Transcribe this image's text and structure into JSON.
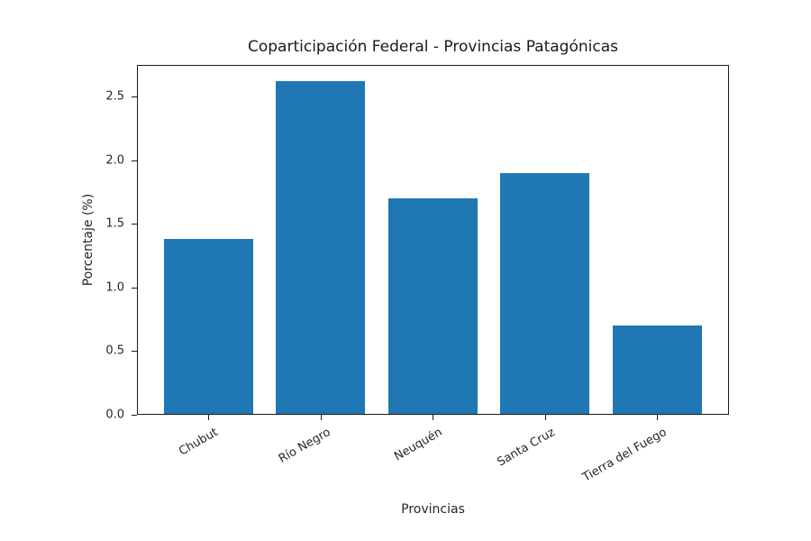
{
  "chart_data": {
    "type": "bar",
    "title": "Coparticipación Federal - Provincias Patagónicas",
    "xlabel": "Provincias",
    "ylabel": "Porcentaje (%)",
    "categories": [
      "Chubut",
      "Río Negro",
      "Neuquén",
      "Santa Cruz",
      "Tierra del Fuego"
    ],
    "values": [
      1.38,
      2.62,
      1.7,
      1.9,
      0.7
    ],
    "ylim": [
      0,
      2.75
    ],
    "yticks": [
      "0.0",
      "0.5",
      "1.0",
      "1.5",
      "2.0",
      "2.5"
    ],
    "ytick_values": [
      0,
      0.5,
      1.0,
      1.5,
      2.0,
      2.5
    ],
    "grid": false,
    "legend": null,
    "bar_color": "#1f77b4",
    "xtick_rotation": 30
  }
}
